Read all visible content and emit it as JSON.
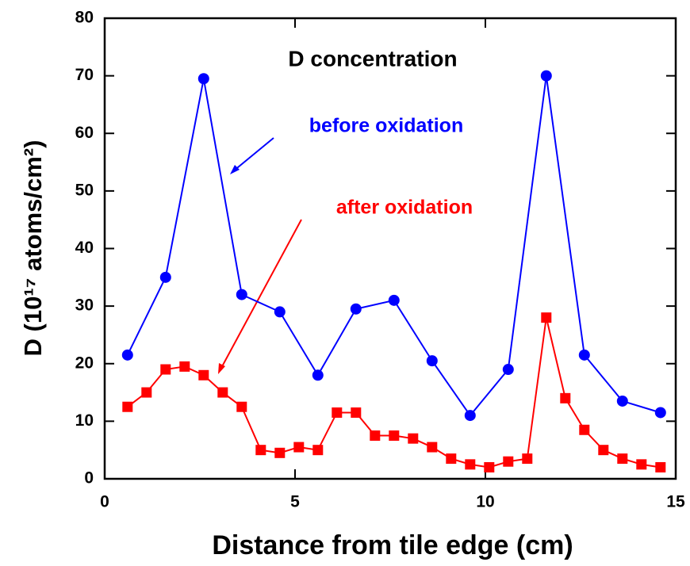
{
  "chart_data": {
    "type": "line",
    "title": "D concentration",
    "x_label": "Distance from tile edge (cm)",
    "y_label": "D (10¹⁷ atoms/cm²)",
    "xlim": [
      0,
      15
    ],
    "xticks": [
      0,
      5,
      10,
      15
    ],
    "ylim": [
      0,
      80
    ],
    "yticks": [
      0,
      10,
      20,
      30,
      40,
      50,
      60,
      70,
      80
    ],
    "series": [
      {
        "name": "before oxidation",
        "color": "#0000ff",
        "marker": "circle",
        "x": [
          0.6,
          1.6,
          2.6,
          3.6,
          4.6,
          5.6,
          6.6,
          7.6,
          8.6,
          9.6,
          10.6,
          11.6,
          12.6,
          13.6,
          14.6
        ],
        "values": [
          21.5,
          35,
          69.5,
          32,
          29,
          18,
          29.5,
          31,
          20.5,
          11,
          19,
          70,
          21.5,
          13.5,
          11.5
        ]
      },
      {
        "name": "after oxidation",
        "color": "#ff0000",
        "marker": "square",
        "x": [
          0.6,
          1.1,
          1.6,
          2.1,
          2.6,
          3.1,
          3.6,
          4.1,
          4.6,
          5.1,
          5.6,
          6.1,
          6.6,
          7.1,
          7.6,
          8.1,
          8.6,
          9.1,
          9.6,
          10.1,
          10.6,
          11.1,
          11.6,
          12.1,
          12.6,
          13.1,
          13.6,
          14.1,
          14.6
        ],
        "values": [
          12.5,
          15,
          19,
          19.5,
          18,
          15,
          12.5,
          5,
          4.5,
          5.5,
          5,
          11.5,
          11.5,
          7.5,
          7.5,
          7,
          5.5,
          3.5,
          2.5,
          2,
          3,
          3.5,
          28,
          14,
          8.5,
          5,
          3.5,
          2.5,
          2
        ]
      }
    ]
  }
}
